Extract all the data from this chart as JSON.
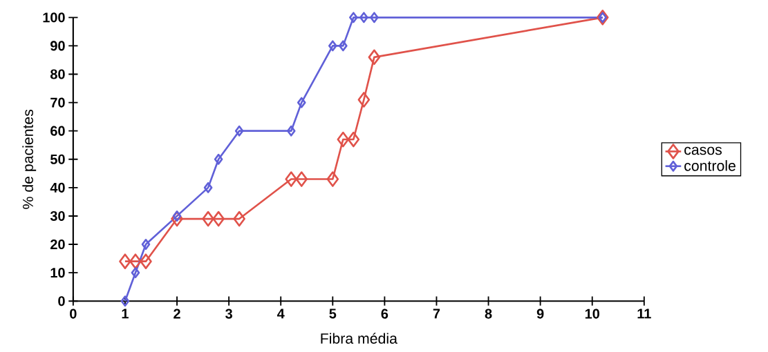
{
  "chart_data": {
    "type": "line",
    "xlabel": "Fibra média",
    "ylabel": "% de pacientes",
    "xlim": [
      0,
      11
    ],
    "ylim": [
      0,
      100
    ],
    "xticks": [
      0,
      1,
      2,
      3,
      4,
      5,
      6,
      7,
      8,
      9,
      10,
      11
    ],
    "yticks": [
      0,
      10,
      20,
      30,
      40,
      50,
      60,
      70,
      80,
      90,
      100
    ],
    "grid": false,
    "legend": "right",
    "marker": "diamond",
    "line_style": "solid",
    "series": [
      {
        "name": "casos",
        "color": "#e0524a",
        "x": [
          1,
          1.2,
          1.4,
          2,
          2.6,
          2.8,
          3.2,
          4.2,
          4.4,
          5,
          5.2,
          5.4,
          5.6,
          5.8,
          10.2
        ],
        "values": [
          14,
          14,
          14,
          29,
          29,
          29,
          29,
          43,
          43,
          43,
          57,
          57,
          71,
          86,
          100
        ]
      },
      {
        "name": "controle",
        "color": "#6060d8",
        "x": [
          1,
          1.2,
          1.4,
          2,
          2.6,
          2.8,
          3.2,
          4.2,
          4.4,
          5,
          5.2,
          5.4,
          5.6,
          5.8,
          10.2
        ],
        "values": [
          0,
          10,
          20,
          30,
          40,
          50,
          60,
          60,
          70,
          90,
          90,
          100,
          100,
          100,
          100
        ]
      }
    ]
  }
}
